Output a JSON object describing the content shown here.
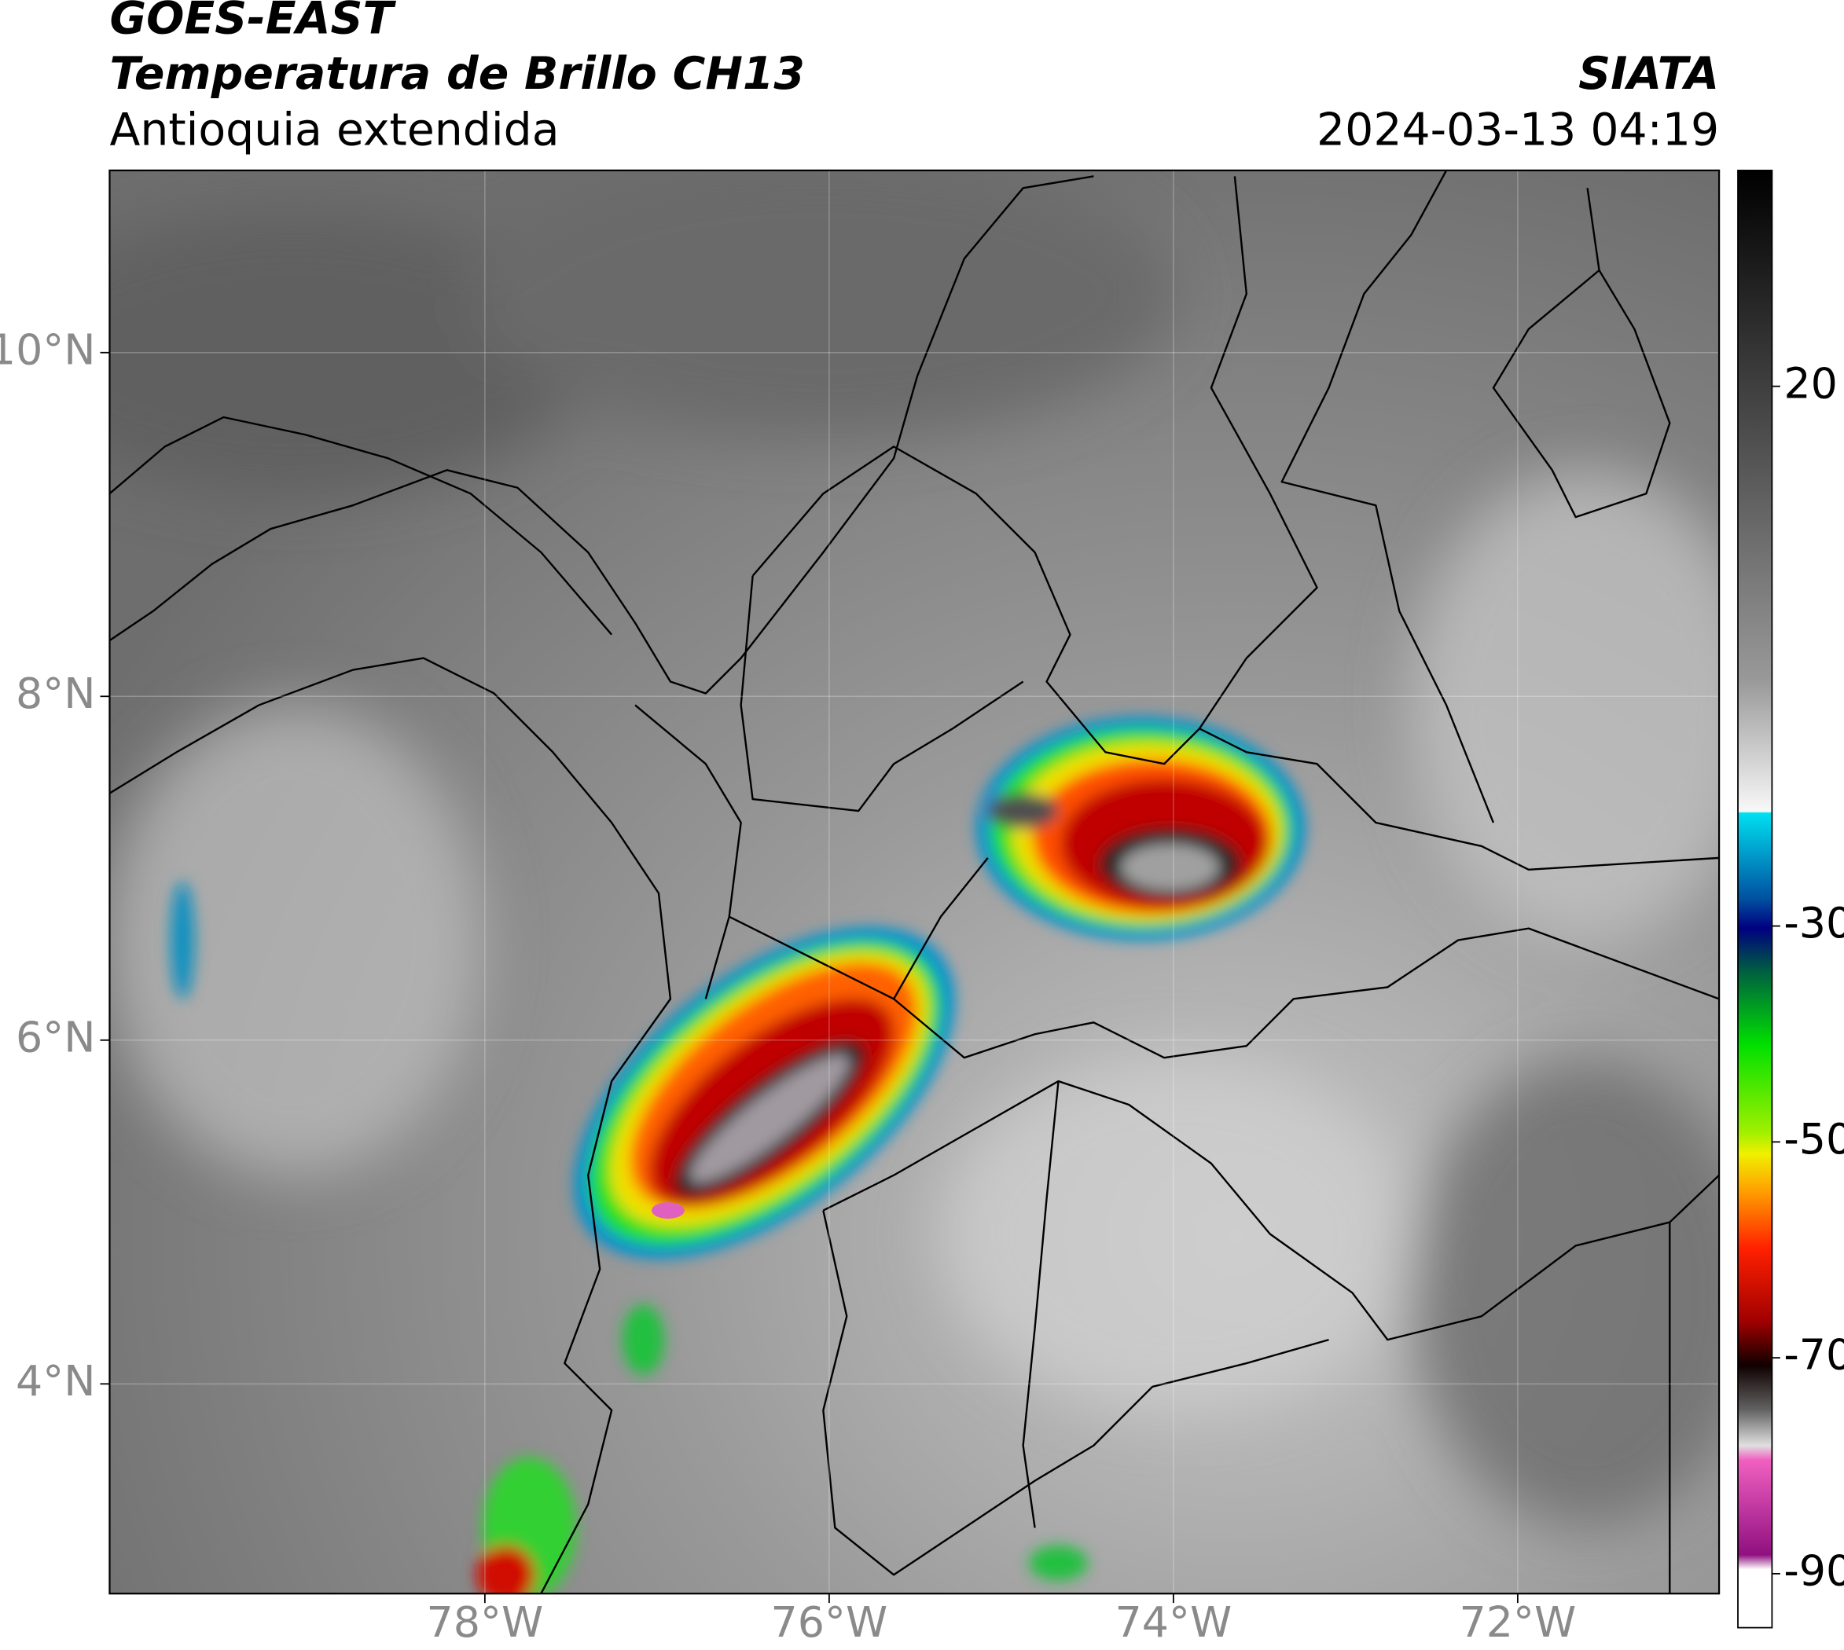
{
  "header": {
    "title": "GOES-EAST",
    "subtitle": "Temperatura de Brillo CH13",
    "region": "Antioquia extendida",
    "source": "SIATA",
    "datetime": "2024-03-13 04:19"
  },
  "map": {
    "xlim": [
      -80.18,
      -70.83
    ],
    "ylim": [
      2.78,
      11.06
    ],
    "xticks": [
      {
        "value": -78,
        "label": "78°W"
      },
      {
        "value": -76,
        "label": "76°W"
      },
      {
        "value": -74,
        "label": "74°W"
      },
      {
        "value": -72,
        "label": "72°W"
      }
    ],
    "yticks": [
      {
        "value": 4,
        "label": "4°N"
      },
      {
        "value": 6,
        "label": "6°N"
      },
      {
        "value": 8,
        "label": "8°N"
      },
      {
        "value": 10,
        "label": "10°N"
      }
    ]
  },
  "colorbar": {
    "lim": [
      -95,
      40
    ],
    "ticks": [
      20,
      -30,
      -50,
      -70,
      -90
    ]
  }
}
